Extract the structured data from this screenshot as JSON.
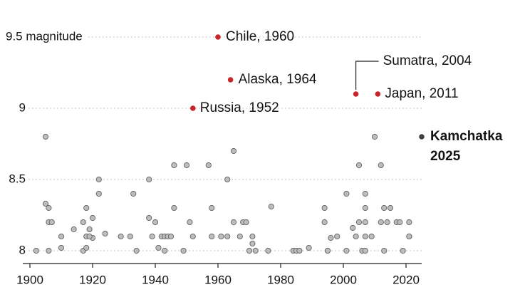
{
  "chart_data": {
    "type": "scatter",
    "xlim": [
      1900,
      2025
    ],
    "ylim": [
      7.9,
      9.6
    ],
    "xticks": [
      1900,
      1920,
      1940,
      1960,
      1980,
      2000,
      2020
    ],
    "yticks": [
      8,
      8.5,
      9,
      {
        "value": 9.5,
        "label": "9.5 magnitude"
      }
    ],
    "grid": true,
    "color": "#bdbdbd",
    "x": [
      1902,
      1905,
      1905,
      1906,
      1906,
      1907,
      1906,
      1910,
      1910,
      1914,
      1917,
      1917,
      1918,
      1918,
      1918,
      1919,
      1920,
      1920,
      1919,
      1922,
      1922,
      1924,
      1929,
      1932,
      1933,
      1934,
      1938,
      1938,
      1939,
      1940,
      1941,
      1942,
      1943,
      1943,
      1944,
      1945,
      1946,
      1946,
      1949,
      1950,
      1951,
      1952,
      1957,
      1958,
      1958,
      1961,
      1963,
      1963,
      1965,
      1965,
      1967,
      1968,
      1969,
      1970,
      1971,
      1971,
      1972,
      1976,
      1977,
      1984,
      1985,
      1986,
      1989,
      1994,
      1994,
      1995,
      1995,
      1996,
      1998,
      2001,
      2001,
      2003,
      2004,
      2005,
      2005,
      2006,
      2007,
      2007,
      2007,
      2007,
      2007,
      2009,
      2010,
      2012,
      2012,
      2013,
      2013,
      2014,
      2015,
      2017,
      2018,
      2019,
      2021,
      2021,
      2021
    ],
    "y": [
      8.0,
      8.8,
      8.33,
      8.3,
      8.2,
      8.2,
      8.0,
      8.1,
      8.02,
      8.15,
      8.2,
      8.0,
      8.3,
      8.1,
      8.02,
      8.15,
      8.23,
      8.09,
      8.1,
      8.5,
      8.4,
      8.12,
      8.1,
      8.1,
      8.4,
      8.0,
      8.5,
      8.23,
      8.1,
      8.2,
      8.02,
      8.1,
      8.0,
      8.1,
      8.1,
      8.1,
      8.6,
      8.3,
      8.0,
      8.6,
      8.2,
      8.1,
      8.6,
      8.1,
      8.3,
      8.1,
      8.5,
      8.1,
      8.2,
      8.7,
      8.1,
      8.2,
      8.2,
      8.0,
      8.1,
      8.05,
      8.0,
      8.0,
      8.31,
      8.0,
      8.0,
      8.0,
      8.02,
      8.2,
      8.3,
      8.0,
      8.0,
      8.09,
      8.1,
      8.0,
      8.4,
      8.16,
      8.1,
      8.6,
      8.2,
      8.0,
      8.3,
      8.1,
      8.0,
      8.4,
      8.2,
      8.1,
      8.8,
      8.2,
      8.6,
      8.0,
      8.3,
      8.2,
      8.3,
      8.2,
      8.2,
      8.0,
      8.1,
      8.1,
      8.2
    ],
    "highlights": [
      {
        "label_lines": [
          "Chile, 1960"
        ],
        "x": 1960,
        "y": 9.5,
        "color": "#c8252c"
      },
      {
        "label_lines": [
          "Alaska, 1964"
        ],
        "x": 1964,
        "y": 9.2,
        "color": "#c8252c"
      },
      {
        "label_lines": [
          "Russia, 1952"
        ],
        "x": 1952,
        "y": 9.0,
        "color": "#c8252c"
      },
      {
        "label_lines": [
          "Sumatra, 2004"
        ],
        "x": 2004,
        "y": 9.1,
        "color": "#c8252c"
      },
      {
        "label_lines": [
          "Japan, 2011"
        ],
        "x": 2011,
        "y": 9.1,
        "color": "#c8252c"
      },
      {
        "label_lines": [
          "Kamchatka",
          "2025"
        ],
        "x": 2025,
        "y": 8.8,
        "color": "#404040",
        "bold": true
      }
    ]
  }
}
